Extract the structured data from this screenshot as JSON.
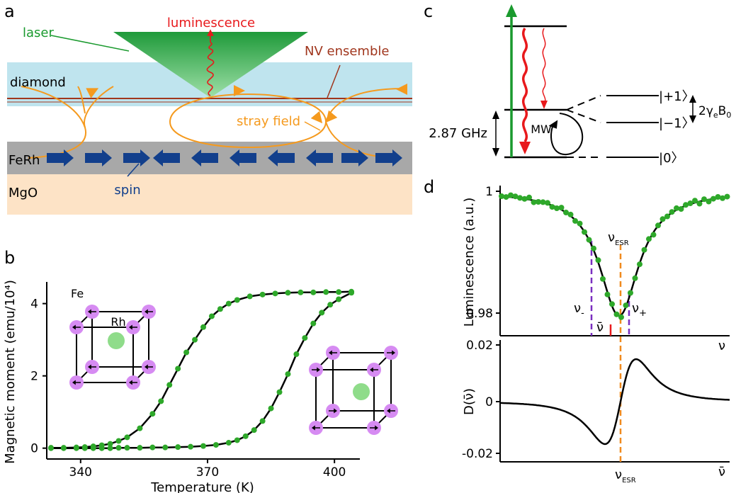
{
  "panel_labels": {
    "a": "a",
    "b": "b",
    "c": "c",
    "d": "d"
  },
  "panel_a": {
    "luminescence": "luminescence",
    "laser": "laser",
    "nv_ensemble": "NV ensemble",
    "diamond": "diamond",
    "stray_field": "stray field",
    "ferh": "FeRh",
    "mgo": "MgO",
    "spin": "spin",
    "colors": {
      "laser": "#1a9a2e",
      "luminescence": "#e8191c",
      "nv": "#a0361d",
      "diamond": "#bfe4ee",
      "stray": "#f59a1e",
      "ferh": "#a8a8a8",
      "mgo": "#fde3c6",
      "spin": "#123f8c"
    }
  },
  "panel_b": {
    "fe_label": "Fe",
    "rh_label": "Rh"
  },
  "panel_c": {
    "freq_label": "2.87 GHz",
    "mw_label": "MW",
    "ket_plus": "|+1〉",
    "ket_minus": "|−1〉",
    "ket_zero": "|0〉",
    "split_label_main": "2γ",
    "split_label_sub": "e",
    "split_label_b": "B",
    "split_label_b_sub": "0"
  },
  "panel_d": {
    "nu_minus": "ν",
    "nu_minus_sub": "-",
    "nu_plus": "ν",
    "nu_plus_sub": "+",
    "nu_bar": "ν̄",
    "nu_esr": "ν",
    "nu_esr_sub": "ESR"
  },
  "chart_data": [
    {
      "type": "scatter",
      "xlabel": "Temperature (K)",
      "ylabel": "Magnetic moment (emu/10⁴)",
      "xticks": [
        340,
        370,
        400
      ],
      "yticks": [
        0,
        2,
        4
      ],
      "xlim": [
        332,
        406
      ],
      "ylim": [
        -0.3,
        4.6
      ],
      "series": [
        {
          "x": [
            333,
            336,
            339,
            341,
            343,
            345,
            347,
            349,
            351,
            354,
            357,
            359,
            361,
            363,
            365,
            367,
            369,
            371,
            373,
            375,
            377,
            380,
            383,
            386,
            389,
            392,
            395,
            398,
            401,
            404
          ],
          "values": [
            0.01,
            0.01,
            0.02,
            0.03,
            0.05,
            0.08,
            0.12,
            0.2,
            0.3,
            0.55,
            0.95,
            1.3,
            1.75,
            2.2,
            2.65,
            3.0,
            3.35,
            3.65,
            3.85,
            4.0,
            4.1,
            4.2,
            4.25,
            4.28,
            4.3,
            4.31,
            4.31,
            4.32,
            4.32,
            4.33
          ]
        },
        {
          "x": [
            333,
            336,
            339,
            341,
            343,
            345,
            347,
            349,
            351,
            354,
            357,
            360,
            363,
            366,
            369,
            372,
            375,
            377,
            379,
            381,
            383,
            385,
            387,
            389,
            391,
            393,
            395,
            397,
            399,
            401,
            404
          ],
          "values": [
            0.0,
            0.0,
            0.0,
            0.0,
            0.0,
            0.0,
            0.0,
            0.01,
            0.01,
            0.01,
            0.02,
            0.02,
            0.03,
            0.04,
            0.06,
            0.09,
            0.15,
            0.22,
            0.33,
            0.5,
            0.75,
            1.1,
            1.55,
            2.05,
            2.6,
            3.05,
            3.45,
            3.75,
            3.97,
            4.12,
            4.3
          ]
        }
      ]
    },
    {
      "type": "line",
      "xlabel": "ν",
      "ylabel": "Luminescence (a.u.)",
      "yticks": [
        "1",
        "0.98"
      ],
      "curve": "lorentzian dip",
      "center_label": "ν_ESR",
      "points_color": "#2ea82a"
    },
    {
      "type": "line",
      "xlabel": "ν̄",
      "ylabel": "D(ν̄)",
      "yticks": [
        "0.02",
        "0",
        "-0.02"
      ],
      "xtick_label": "ν_ESR",
      "curve": "derivative dispersion"
    }
  ]
}
